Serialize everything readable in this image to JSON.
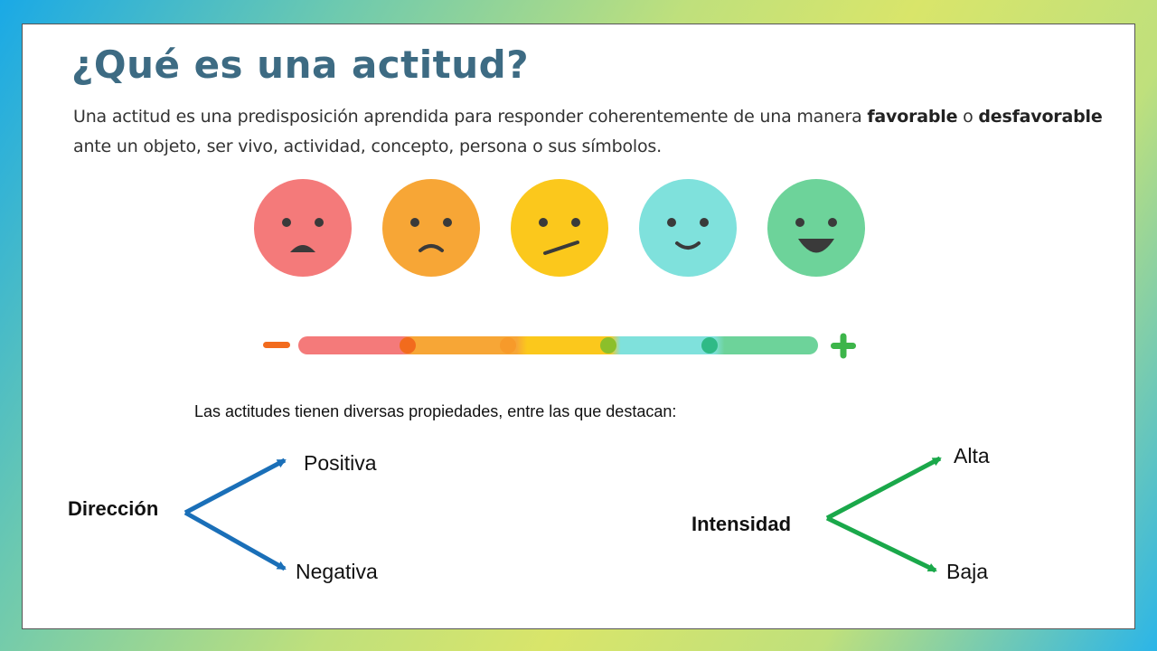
{
  "title": "¿Qué es una actitud?",
  "intro": {
    "part1": "Una actitud es una predisposición aprendida para responder coherentemente de una manera ",
    "bold1": "favorable",
    "part2": " o ",
    "bold2": "desfavorable",
    "part3": " ante un objeto, ser vivo, actividad, concepto, persona o sus símbolos."
  },
  "scale": {
    "faces": [
      {
        "icon": "very-sad-face-icon",
        "color": "#f47a7a"
      },
      {
        "icon": "sad-face-icon",
        "color": "#f7a636"
      },
      {
        "icon": "neutral-face-icon",
        "color": "#fbc81c"
      },
      {
        "icon": "smile-face-icon",
        "color": "#7fe1dc"
      },
      {
        "icon": "happy-face-icon",
        "color": "#6dd39a"
      }
    ],
    "minus_color": "#f26b1d",
    "plus_color": "#3db54a"
  },
  "properties_intro": "Las actitudes tienen diversas propiedades, entre las que destacan:",
  "direction": {
    "label": "Dirección",
    "positive": "Positiva",
    "negative": "Negativa",
    "color": "#1a6fb8"
  },
  "intensity": {
    "label": "Intensidad",
    "high": "Alta",
    "low": "Baja",
    "color": "#1aa84a"
  }
}
